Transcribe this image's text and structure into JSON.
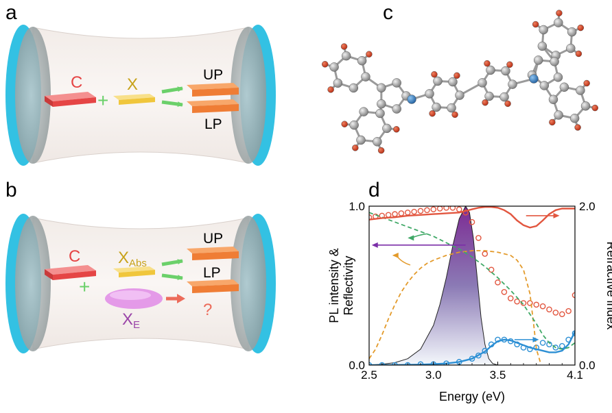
{
  "panels": {
    "a": {
      "label": "a",
      "cavity_label": "C",
      "plus": "+",
      "exciton_label": "X",
      "upper_label": "UP",
      "lower_label": "LP"
    },
    "b": {
      "label": "b",
      "cavity_label": "C",
      "plus": "+",
      "exciton_abs_main": "X",
      "exciton_abs_sub": "Abs",
      "exciton_e_main": "X",
      "exciton_e_sub": "E",
      "upper_label": "UP",
      "lower_label": "LP",
      "question": "?"
    },
    "c": {
      "label": "c"
    },
    "d": {
      "label": "d"
    }
  },
  "colors": {
    "mirror": "#33c1e3",
    "cavity_red": "#ec4a4a",
    "exciton_yellow": "#f3cf4e",
    "polariton_orange": "#f07d3d",
    "green_arrow": "#6bd06a",
    "purple_exciton": "#e49ae8",
    "red_line": "#e2563f",
    "orange_dash": "#e39a2a",
    "green_dash": "#3fa866",
    "blue_line": "#2c8fd4",
    "purple_arrow": "#7b2ea8"
  },
  "chart_data": {
    "type": "line",
    "xlabel": "Energy (eV)",
    "ylabel_line1": "PL intensity &",
    "ylabel_line2": "Reflectivity",
    "y2label": "Refractive index",
    "xlim": [
      2.5,
      4.1
    ],
    "ylim": [
      0.0,
      1.0
    ],
    "y2lim": [
      0.0,
      2.0
    ],
    "x_ticks": [
      "2.5",
      "3.0",
      "3.5",
      "4.1"
    ],
    "y_ticks": [
      "0.0",
      "1.0"
    ],
    "y2_ticks": [
      "0.0",
      "2.0"
    ],
    "series": [
      {
        "style": "filled-area",
        "axis": "left",
        "x": [
          2.5,
          2.6,
          2.7,
          2.8,
          2.9,
          3.0,
          3.05,
          3.1,
          3.15,
          3.2,
          3.25,
          3.28,
          3.31,
          3.34,
          3.37,
          3.4,
          3.43,
          3.46,
          3.5
        ],
        "y": [
          0.0,
          0.005,
          0.015,
          0.04,
          0.1,
          0.25,
          0.38,
          0.55,
          0.75,
          0.92,
          1.0,
          0.96,
          0.8,
          0.55,
          0.3,
          0.13,
          0.04,
          0.01,
          0.0
        ]
      },
      {
        "style": "open-circles-red",
        "axis": "left",
        "x": [
          2.5,
          2.55,
          2.6,
          2.65,
          2.7,
          2.75,
          2.8,
          2.85,
          2.9,
          2.95,
          3.0,
          3.05,
          3.1,
          3.15,
          3.2,
          3.25,
          3.3,
          3.35,
          3.4,
          3.45,
          3.5,
          3.55,
          3.6,
          3.65,
          3.7,
          3.75,
          3.8,
          3.85,
          3.9,
          3.95,
          4.0,
          4.05,
          4.1
        ],
        "y": [
          0.93,
          0.935,
          0.94,
          0.945,
          0.95,
          0.955,
          0.96,
          0.965,
          0.97,
          0.975,
          0.98,
          0.985,
          0.99,
          0.99,
          0.98,
          0.96,
          0.9,
          0.8,
          0.7,
          0.6,
          0.52,
          0.46,
          0.42,
          0.4,
          0.39,
          0.39,
          0.38,
          0.37,
          0.35,
          0.33,
          0.32,
          0.34,
          0.44
        ]
      },
      {
        "style": "open-circles-blue",
        "axis": "left",
        "x": [
          2.5,
          2.6,
          2.7,
          2.8,
          2.9,
          3.0,
          3.1,
          3.2,
          3.3,
          3.35,
          3.4,
          3.45,
          3.5,
          3.55,
          3.6,
          3.65,
          3.7,
          3.75,
          3.8,
          3.85,
          3.9,
          3.95,
          4.0,
          4.05,
          4.1
        ],
        "y": [
          0.0,
          0.0,
          0.0,
          0.0,
          0.005,
          0.005,
          0.01,
          0.02,
          0.04,
          0.06,
          0.09,
          0.13,
          0.16,
          0.16,
          0.15,
          0.13,
          0.11,
          0.1,
          0.11,
          0.14,
          0.13,
          0.11,
          0.12,
          0.16,
          0.2
        ]
      },
      {
        "style": "solid-blue",
        "axis": "left",
        "x": [
          2.5,
          2.7,
          2.9,
          3.0,
          3.1,
          3.2,
          3.3,
          3.4,
          3.45,
          3.5,
          3.55,
          3.6,
          3.65,
          3.7,
          3.75,
          3.8,
          3.85,
          3.9,
          3.95,
          4.0,
          4.05,
          4.1
        ],
        "y": [
          0.0,
          0.0,
          0.003,
          0.006,
          0.01,
          0.02,
          0.04,
          0.085,
          0.12,
          0.15,
          0.16,
          0.155,
          0.14,
          0.125,
          0.11,
          0.1,
          0.09,
          0.08,
          0.08,
          0.09,
          0.13,
          0.21
        ]
      },
      {
        "style": "dashed-orange",
        "axis": "left",
        "x": [
          2.5,
          2.55,
          2.6,
          2.65,
          2.7,
          2.75,
          2.8,
          2.85,
          2.9,
          2.95,
          3.0,
          3.1,
          3.2,
          3.3,
          3.4,
          3.5,
          3.6,
          3.65,
          3.7,
          3.75,
          3.78,
          3.8,
          3.83
        ],
        "y": [
          0.04,
          0.1,
          0.19,
          0.29,
          0.38,
          0.46,
          0.52,
          0.57,
          0.61,
          0.64,
          0.66,
          0.69,
          0.71,
          0.72,
          0.72,
          0.71,
          0.69,
          0.66,
          0.6,
          0.45,
          0.25,
          0.1,
          0.02
        ]
      },
      {
        "style": "dashed-green",
        "axis": "left",
        "x": [
          2.5,
          2.6,
          2.7,
          2.8,
          2.9,
          3.0,
          3.1,
          3.2,
          3.3,
          3.4,
          3.5,
          3.6,
          3.7,
          3.8,
          3.85,
          3.9,
          3.95,
          4.0,
          4.05,
          4.1
        ],
        "y": [
          0.96,
          0.93,
          0.9,
          0.87,
          0.84,
          0.81,
          0.77,
          0.73,
          0.68,
          0.62,
          0.55,
          0.47,
          0.38,
          0.26,
          0.19,
          0.14,
          0.11,
          0.1,
          0.11,
          0.14
        ]
      },
      {
        "style": "solid-red",
        "axis": "right",
        "x": [
          2.5,
          2.6,
          2.7,
          2.8,
          2.9,
          3.0,
          3.1,
          3.2,
          3.25,
          3.3,
          3.35,
          3.4,
          3.45,
          3.5,
          3.55,
          3.6,
          3.65,
          3.7,
          3.75,
          3.8,
          3.85,
          3.9,
          3.95,
          4.0,
          4.05,
          4.1
        ],
        "y": [
          1.83,
          1.85,
          1.86,
          1.88,
          1.89,
          1.9,
          1.91,
          1.92,
          1.94,
          1.96,
          1.98,
          1.99,
          1.99,
          1.98,
          1.95,
          1.9,
          1.82,
          1.76,
          1.73,
          1.75,
          1.82,
          1.9,
          1.95,
          1.97,
          1.97,
          1.97
        ]
      }
    ],
    "arrows": [
      {
        "color": "red",
        "direction": "right",
        "x_start": 3.72,
        "x_end": 3.98,
        "y": 0.94
      },
      {
        "color": "green",
        "direction": "left",
        "x_start": 2.95,
        "x_end": 2.8,
        "y": 0.8
      },
      {
        "color": "purple",
        "direction": "left",
        "x_start": 3.25,
        "x_end": 2.52,
        "y": 0.755
      },
      {
        "color": "orange",
        "direction": "left",
        "x_start": 2.82,
        "x_end": 2.68,
        "y": 0.69
      },
      {
        "color": "blue",
        "direction": "right",
        "x_start": 3.63,
        "x_end": 3.82,
        "y": 0.16
      }
    ]
  }
}
